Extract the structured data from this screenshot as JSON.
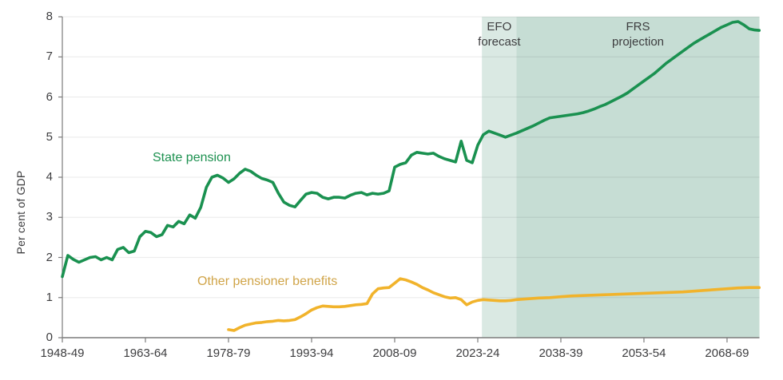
{
  "chart_data": {
    "type": "line",
    "title": "",
    "ylabel": "Per cent of GDP",
    "xlabel": "",
    "ylim": [
      0,
      8
    ],
    "grid": "horizontal",
    "legend_position": "inline-labels",
    "y_ticks": [
      0,
      1,
      2,
      3,
      4,
      5,
      6,
      7,
      8
    ],
    "x_ticks": [
      {
        "year": 1948,
        "label": "1948-49"
      },
      {
        "year": 1963,
        "label": "1963-64"
      },
      {
        "year": 1978,
        "label": "1978-79"
      },
      {
        "year": 1993,
        "label": "1993-94"
      },
      {
        "year": 2008,
        "label": "2008-09"
      },
      {
        "year": 2023,
        "label": "2023-24"
      },
      {
        "year": 2038,
        "label": "2038-39"
      },
      {
        "year": 2053,
        "label": "2053-54"
      },
      {
        "year": 2068,
        "label": "2068-69"
      }
    ],
    "x_range_years": [
      1948,
      2073.85
    ],
    "bands": [
      {
        "name": "efo-forecast",
        "label_line1": "EFO",
        "label_line2": "forecast",
        "from_year": 2023.75,
        "to_year": 2030,
        "color": "#dae9e3"
      },
      {
        "name": "frs-projection",
        "label_line1": "FRS",
        "label_line2": "projection",
        "from_year": 2030,
        "to_year": 2073.85,
        "color": "#c6ddd4"
      }
    ],
    "series": [
      {
        "name": "State pension",
        "color": "#1a9150",
        "points": [
          [
            1948,
            1.52
          ],
          [
            1949,
            2.05
          ],
          [
            1950,
            1.95
          ],
          [
            1951,
            1.88
          ],
          [
            1952,
            1.94
          ],
          [
            1953,
            2.0
          ],
          [
            1954,
            2.02
          ],
          [
            1955,
            1.94
          ],
          [
            1956,
            2.0
          ],
          [
            1957,
            1.94
          ],
          [
            1958,
            2.2
          ],
          [
            1959,
            2.25
          ],
          [
            1960,
            2.12
          ],
          [
            1961,
            2.16
          ],
          [
            1962,
            2.52
          ],
          [
            1963,
            2.65
          ],
          [
            1964,
            2.62
          ],
          [
            1965,
            2.52
          ],
          [
            1966,
            2.57
          ],
          [
            1967,
            2.8
          ],
          [
            1968,
            2.76
          ],
          [
            1969,
            2.9
          ],
          [
            1970,
            2.84
          ],
          [
            1971,
            3.06
          ],
          [
            1972,
            2.98
          ],
          [
            1973,
            3.25
          ],
          [
            1974,
            3.75
          ],
          [
            1975,
            4.0
          ],
          [
            1976,
            4.05
          ],
          [
            1977,
            3.98
          ],
          [
            1978,
            3.87
          ],
          [
            1979,
            3.96
          ],
          [
            1980,
            4.1
          ],
          [
            1981,
            4.2
          ],
          [
            1982,
            4.15
          ],
          [
            1983,
            4.05
          ],
          [
            1984,
            3.97
          ],
          [
            1985,
            3.93
          ],
          [
            1986,
            3.87
          ],
          [
            1987,
            3.6
          ],
          [
            1988,
            3.38
          ],
          [
            1989,
            3.3
          ],
          [
            1990,
            3.26
          ],
          [
            1991,
            3.42
          ],
          [
            1992,
            3.58
          ],
          [
            1993,
            3.62
          ],
          [
            1994,
            3.6
          ],
          [
            1995,
            3.5
          ],
          [
            1996,
            3.46
          ],
          [
            1997,
            3.5
          ],
          [
            1998,
            3.5
          ],
          [
            1999,
            3.48
          ],
          [
            2000,
            3.55
          ],
          [
            2001,
            3.6
          ],
          [
            2002,
            3.62
          ],
          [
            2003,
            3.56
          ],
          [
            2004,
            3.6
          ],
          [
            2005,
            3.58
          ],
          [
            2006,
            3.6
          ],
          [
            2007,
            3.66
          ],
          [
            2008,
            4.25
          ],
          [
            2009,
            4.32
          ],
          [
            2010,
            4.36
          ],
          [
            2011,
            4.55
          ],
          [
            2012,
            4.62
          ],
          [
            2013,
            4.6
          ],
          [
            2014,
            4.58
          ],
          [
            2015,
            4.6
          ],
          [
            2016,
            4.52
          ],
          [
            2017,
            4.46
          ],
          [
            2018,
            4.42
          ],
          [
            2019,
            4.38
          ],
          [
            2020,
            4.9
          ],
          [
            2021,
            4.42
          ],
          [
            2022,
            4.36
          ],
          [
            2023,
            4.8
          ],
          [
            2024,
            5.06
          ],
          [
            2025,
            5.15
          ],
          [
            2026,
            5.1
          ],
          [
            2027,
            5.05
          ],
          [
            2028,
            5.0
          ],
          [
            2029,
            5.05
          ],
          [
            2030,
            5.1
          ],
          [
            2031,
            5.16
          ],
          [
            2032,
            5.22
          ],
          [
            2033,
            5.28
          ],
          [
            2034,
            5.35
          ],
          [
            2035,
            5.42
          ],
          [
            2036,
            5.48
          ],
          [
            2037,
            5.5
          ],
          [
            2038,
            5.52
          ],
          [
            2039,
            5.54
          ],
          [
            2040,
            5.56
          ],
          [
            2041,
            5.58
          ],
          [
            2042,
            5.61
          ],
          [
            2043,
            5.65
          ],
          [
            2044,
            5.7
          ],
          [
            2045,
            5.76
          ],
          [
            2046,
            5.81
          ],
          [
            2047,
            5.88
          ],
          [
            2048,
            5.95
          ],
          [
            2049,
            6.02
          ],
          [
            2050,
            6.1
          ],
          [
            2051,
            6.2
          ],
          [
            2052,
            6.3
          ],
          [
            2053,
            6.4
          ],
          [
            2054,
            6.5
          ],
          [
            2055,
            6.6
          ],
          [
            2056,
            6.72
          ],
          [
            2057,
            6.84
          ],
          [
            2058,
            6.94
          ],
          [
            2059,
            7.04
          ],
          [
            2060,
            7.14
          ],
          [
            2061,
            7.24
          ],
          [
            2062,
            7.34
          ],
          [
            2063,
            7.42
          ],
          [
            2064,
            7.5
          ],
          [
            2065,
            7.58
          ],
          [
            2066,
            7.66
          ],
          [
            2067,
            7.74
          ],
          [
            2068,
            7.8
          ],
          [
            2069,
            7.86
          ],
          [
            2070,
            7.88
          ],
          [
            2071,
            7.8
          ],
          [
            2072,
            7.7
          ],
          [
            2073,
            7.67
          ],
          [
            2073.8,
            7.66
          ]
        ]
      },
      {
        "name": "Other pensioner benefits",
        "color": "#f1b32b",
        "points": [
          [
            1978,
            0.2
          ],
          [
            1979,
            0.18
          ],
          [
            1980,
            0.25
          ],
          [
            1981,
            0.31
          ],
          [
            1982,
            0.34
          ],
          [
            1983,
            0.37
          ],
          [
            1984,
            0.38
          ],
          [
            1985,
            0.4
          ],
          [
            1986,
            0.41
          ],
          [
            1987,
            0.43
          ],
          [
            1988,
            0.42
          ],
          [
            1989,
            0.43
          ],
          [
            1990,
            0.45
          ],
          [
            1991,
            0.52
          ],
          [
            1992,
            0.6
          ],
          [
            1993,
            0.69
          ],
          [
            1994,
            0.75
          ],
          [
            1995,
            0.79
          ],
          [
            1996,
            0.78
          ],
          [
            1997,
            0.77
          ],
          [
            1998,
            0.77
          ],
          [
            1999,
            0.78
          ],
          [
            2000,
            0.8
          ],
          [
            2001,
            0.82
          ],
          [
            2002,
            0.83
          ],
          [
            2003,
            0.85
          ],
          [
            2004,
            1.09
          ],
          [
            2005,
            1.22
          ],
          [
            2006,
            1.24
          ],
          [
            2007,
            1.25
          ],
          [
            2008,
            1.36
          ],
          [
            2009,
            1.47
          ],
          [
            2010,
            1.44
          ],
          [
            2011,
            1.39
          ],
          [
            2012,
            1.33
          ],
          [
            2013,
            1.25
          ],
          [
            2014,
            1.19
          ],
          [
            2015,
            1.12
          ],
          [
            2016,
            1.07
          ],
          [
            2017,
            1.02
          ],
          [
            2018,
            0.99
          ],
          [
            2019,
            1.0
          ],
          [
            2020,
            0.95
          ],
          [
            2021,
            0.82
          ],
          [
            2022,
            0.89
          ],
          [
            2023,
            0.93
          ],
          [
            2024,
            0.95
          ],
          [
            2025,
            0.94
          ],
          [
            2026,
            0.93
          ],
          [
            2027,
            0.92
          ],
          [
            2028,
            0.92
          ],
          [
            2029,
            0.93
          ],
          [
            2030,
            0.95
          ],
          [
            2032,
            0.97
          ],
          [
            2034,
            0.99
          ],
          [
            2036,
            1.0
          ],
          [
            2038,
            1.02
          ],
          [
            2040,
            1.04
          ],
          [
            2042,
            1.05
          ],
          [
            2044,
            1.06
          ],
          [
            2046,
            1.07
          ],
          [
            2048,
            1.08
          ],
          [
            2050,
            1.09
          ],
          [
            2052,
            1.1
          ],
          [
            2054,
            1.11
          ],
          [
            2056,
            1.12
          ],
          [
            2058,
            1.13
          ],
          [
            2060,
            1.14
          ],
          [
            2062,
            1.16
          ],
          [
            2064,
            1.18
          ],
          [
            2066,
            1.2
          ],
          [
            2068,
            1.22
          ],
          [
            2070,
            1.24
          ],
          [
            2072,
            1.25
          ],
          [
            2073.8,
            1.25
          ]
        ]
      }
    ]
  }
}
